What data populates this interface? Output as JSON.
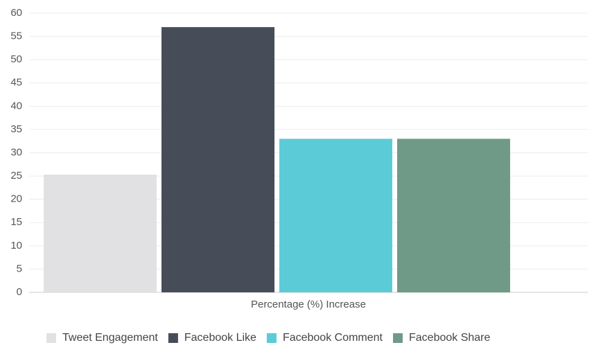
{
  "chart_data": {
    "type": "bar",
    "categories": [
      "Percentage (%) Increase"
    ],
    "series": [
      {
        "name": "Tweet Engagement",
        "color": "#e1e1e3",
        "values": [
          25.3
        ]
      },
      {
        "name": "Facebook Like",
        "color": "#464d59",
        "values": [
          57
        ]
      },
      {
        "name": "Facebook Comment",
        "color": "#5ccbd8",
        "values": [
          33
        ]
      },
      {
        "name": "Facebook Share",
        "color": "#6f9a88",
        "values": [
          33
        ]
      }
    ],
    "ylim": [
      0,
      60
    ],
    "yticks": [
      0,
      5,
      10,
      15,
      20,
      25,
      30,
      35,
      40,
      45,
      50,
      55,
      60
    ],
    "grid": true,
    "legend": "bottom"
  }
}
